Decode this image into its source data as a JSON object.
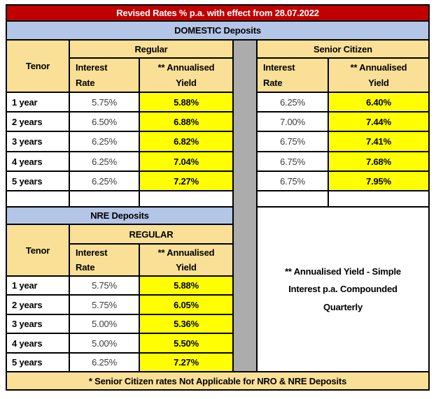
{
  "title": "Revised Rates % p.a. with effect from 28.07.2022",
  "domestic": {
    "section_label": "DOMESTIC Deposits",
    "tenor_header": "Tenor",
    "regular_header": "Regular",
    "senior_header": "Senior Citizen",
    "interest_rate_header": "Interest\nRate",
    "annualised_yield_header": "** Annualised\nYield",
    "rows": [
      {
        "tenor": "1 year",
        "regular_rate": "5.75%",
        "regular_yield": "5.88%",
        "senior_rate": "6.25%",
        "senior_yield": "6.40%"
      },
      {
        "tenor": "2 years",
        "regular_rate": "6.50%",
        "regular_yield": "6.88%",
        "senior_rate": "7.00%",
        "senior_yield": "7.44%"
      },
      {
        "tenor": "3 years",
        "regular_rate": "6.25%",
        "regular_yield": "6.82%",
        "senior_rate": "6.75%",
        "senior_yield": "7.41%"
      },
      {
        "tenor": "4 years",
        "regular_rate": "6.25%",
        "regular_yield": "7.04%",
        "senior_rate": "6.75%",
        "senior_yield": "7.68%"
      },
      {
        "tenor": "5 years",
        "regular_rate": "6.25%",
        "regular_yield": "7.27%",
        "senior_rate": "6.75%",
        "senior_yield": "7.95%"
      }
    ]
  },
  "nre": {
    "section_label": "NRE Deposits",
    "tenor_header": "Tenor",
    "regular_header": "REGULAR",
    "interest_rate_header": "Interest\nRate",
    "annualised_yield_header": "** Annualised\nYield",
    "rows": [
      {
        "tenor": "1 year",
        "rate": "5.75%",
        "yield": "5.88%"
      },
      {
        "tenor": "2 years",
        "rate": "5.75%",
        "yield": "6.05%"
      },
      {
        "tenor": "3 years",
        "rate": "5.00%",
        "yield": "5.36%"
      },
      {
        "tenor": "4 years",
        "rate": "5.00%",
        "yield": "5.50%"
      },
      {
        "tenor": "5 years",
        "rate": "6.25%",
        "yield": "7.27%"
      }
    ]
  },
  "note": "** Annualised Yield - Simple Interest p.a. Compounded Quarterly",
  "footer": "* Senior Citizen rates Not Applicable for NRO & NRE Deposits",
  "colors": {
    "title_bg": "#C00000",
    "title_text": "#FFFFFF",
    "section_bar_bg": "#B4C6E7",
    "header_bg": "#FAE096",
    "yield_highlight_bg": "#FFFF00",
    "divider_gray": "#ACACAC",
    "border": "#000000"
  }
}
